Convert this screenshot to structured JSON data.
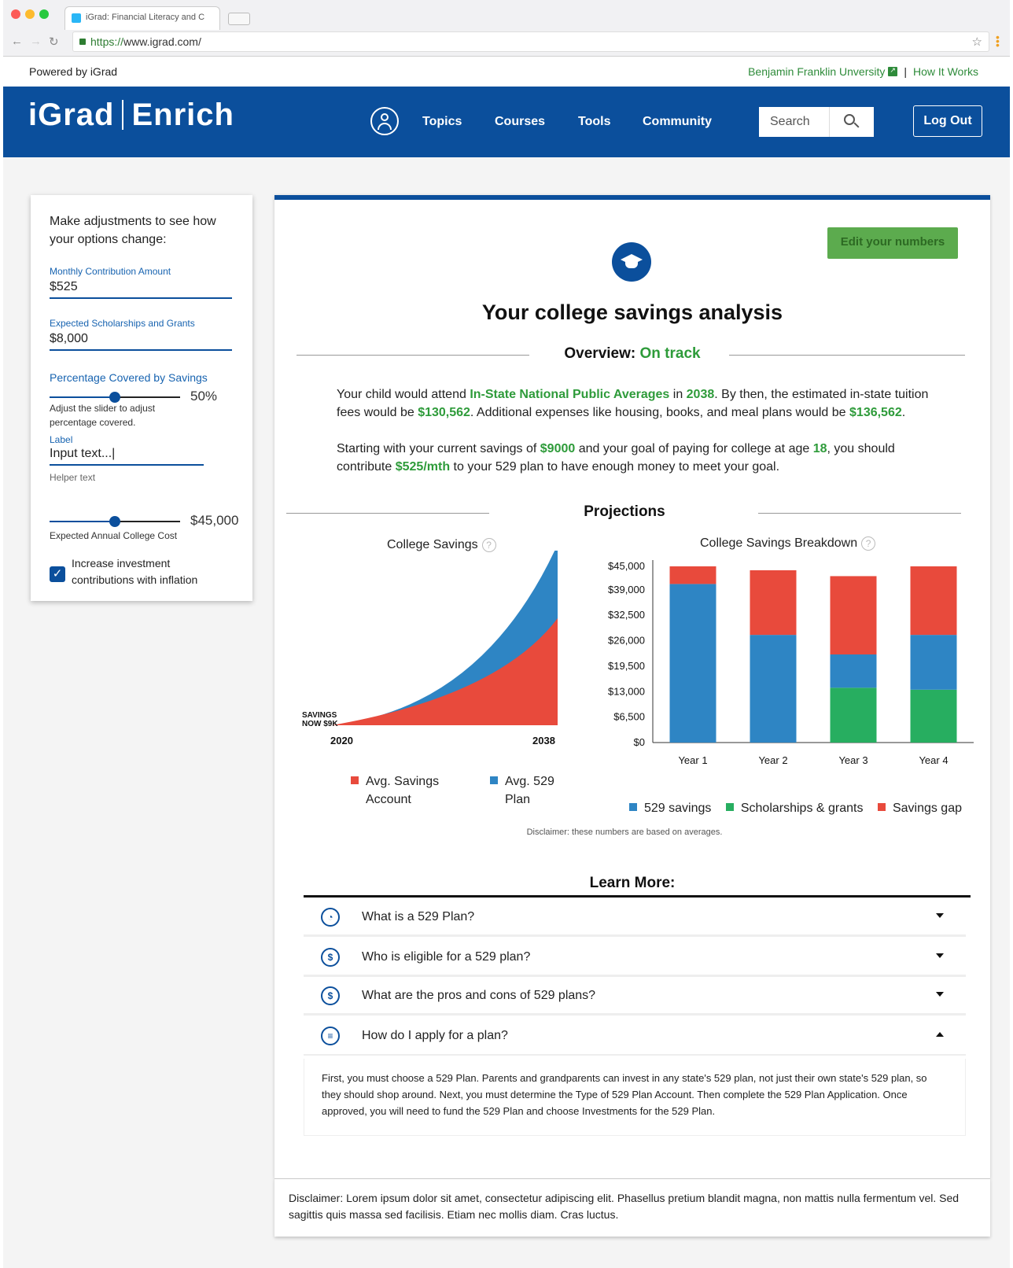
{
  "browser": {
    "tab_title": "iGrad: Financial Literacy and C",
    "url_scheme": "https://",
    "url_rest": "www.igrad.com/"
  },
  "topline": {
    "powered": "Powered by iGrad",
    "university": "Benjamin Franklin Unversity",
    "separator": "|",
    "how_it_works": "How It Works"
  },
  "header": {
    "logo_left": "iGrad",
    "logo_right": "Enrich",
    "nav": [
      "Topics",
      "Courses",
      "Tools",
      "Community"
    ],
    "search_placeholder": "Search",
    "logout": "Log Out"
  },
  "sidebar": {
    "heading": "Make adjustments to see how your options change:",
    "monthly_label": "Monthly Contribution Amount",
    "monthly_value": "$525",
    "scholarships_label": "Expected Scholarships and Grants",
    "scholarships_value": "$8,000",
    "percentage_label": "Percentage Covered by Savings",
    "percentage_value": "50%",
    "percentage_fraction": 0.5,
    "percentage_help": "Adjust the slider to adjust percentage covered.",
    "input_label": "Label",
    "input_value": "Input text...|",
    "helper_text": "Helper text",
    "annual_cost_value": "$45,000",
    "annual_cost_fraction": 0.5,
    "annual_cost_label": "Expected Annual College Cost",
    "checkbox_label": "Increase investment contributions with inflation",
    "checkbox_checked": true
  },
  "main": {
    "edit_button": "Edit your numbers",
    "title": "Your college savings analysis",
    "overview_label": "Overview:",
    "overview_status": "On track",
    "p1": {
      "t1": "Your child would attend ",
      "school": "In-State National Public Averages",
      "t2": " in ",
      "year": "2038",
      "t3": ". By then, the estimated in-state tuition fees would be ",
      "tuition": "$130,562",
      "t4": ". Additional expenses like housing, books, and meal plans would be ",
      "expenses": "$136,562",
      "t5": "."
    },
    "p2": {
      "t1": "Starting with your current savings of ",
      "savings": "$9000",
      "t2": " and your goal of paying for college at age ",
      "age": "18",
      "t3": ", you should contribute ",
      "contrib": "$525/mth",
      "t4": " to your 529 plan to have enough money to meet your goal."
    },
    "projections": "Projections",
    "disclaimer_small": "Disclaimer: these numbers are based on averages.",
    "learn_more": "Learn More:",
    "faq": [
      {
        "q": "What is a 529 Plan?",
        "icon": "gauge-icon",
        "glyph": "◔"
      },
      {
        "q": "Who is eligible for a 529 plan?",
        "icon": "price-tag-icon",
        "glyph": "$"
      },
      {
        "q": "What are the pros and cons of 529 plans?",
        "icon": "price-tag-icon",
        "glyph": "$"
      },
      {
        "q": "How do I apply for a plan?",
        "icon": "document-icon",
        "glyph": "≡"
      }
    ],
    "answer": "First, you must choose a 529 Plan. Parents and grandparents can invest in any state's 529 plan, not just their own state's 529 plan, so they should shop around. Next, you must determine the Type of 529 Plan Account. Then complete the 529 Plan Application. Once approved, you will need to fund the 529 Plan and choose Investments for the 529 Plan.",
    "footer_disclaimer": "Disclaimer: Lorem ipsum dolor sit amet, consectetur adipiscing elit. Phasellus pretium blandit magna, non mattis nulla fermentum vel. Sed sagittis quis massa sed facilisis. Etiam nec mollis diam. Cras luctus."
  },
  "colors": {
    "brand_blue": "#0b4f9c",
    "accent_green": "#2e9b3a",
    "chart_red": "#e84a3c",
    "chart_blue": "#2e85c4",
    "chart_green": "#27ae60"
  },
  "chart_data": [
    {
      "type": "area",
      "title": "College Savings",
      "x": [
        2020,
        2038
      ],
      "x_tick_labels": [
        "2020",
        "2038"
      ],
      "start_label": [
        "SAVINGS",
        "NOW $9K"
      ],
      "series": [
        {
          "name": "Avg. Savings Account",
          "color": "#e84a3c"
        },
        {
          "name": "Avg. 529 Plan",
          "color": "#2e85c4"
        }
      ],
      "legend": [
        "Avg. Savings",
        "Account",
        "Avg. 529",
        "Plan"
      ],
      "y_axis_visible": false
    },
    {
      "type": "bar",
      "stacked": true,
      "title": "College Savings Breakdown",
      "categories": [
        "Year 1",
        "Year 2",
        "Year 3",
        "Year 4"
      ],
      "ylim": [
        0,
        45000
      ],
      "yticks": [
        0,
        6500,
        13000,
        19500,
        26000,
        32500,
        39000,
        45000
      ],
      "ytick_labels": [
        "$0",
        "$6,500",
        "$13,000",
        "$19,500",
        "$26,000",
        "$32,500",
        "$39,000",
        "$45,000"
      ],
      "series": [
        {
          "name": "529 savings",
          "color": "#2e85c4",
          "values": [
            40500,
            27500,
            8500,
            14000
          ]
        },
        {
          "name": "Scholarships & grants",
          "color": "#27ae60",
          "values": [
            0,
            0,
            14000,
            13500
          ]
        },
        {
          "name": "Savings gap",
          "color": "#e84a3c",
          "values": [
            4500,
            16500,
            20000,
            17500
          ]
        }
      ]
    }
  ]
}
